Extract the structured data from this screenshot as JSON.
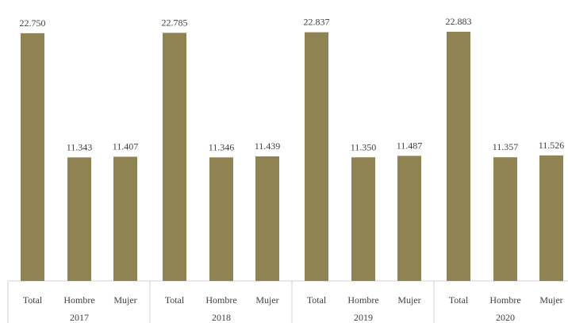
{
  "chart_data": {
    "type": "bar",
    "title": "",
    "xlabel": "",
    "ylabel": "",
    "ylim": [
      0,
      22883
    ],
    "bar_color": "#8f8353",
    "groups": [
      {
        "year": "2017",
        "categories": [
          "Total",
          "Hombre",
          "Mujer"
        ],
        "values": [
          22750,
          11343,
          11407
        ],
        "value_labels": [
          "22.750",
          "11.343",
          "11.407"
        ]
      },
      {
        "year": "2018",
        "categories": [
          "Total",
          "Hombre",
          "Mujer"
        ],
        "values": [
          22785,
          11346,
          11439
        ],
        "value_labels": [
          "22.785",
          "11.346",
          "11.439"
        ]
      },
      {
        "year": "2019",
        "categories": [
          "Total",
          "Hombre",
          "Mujer"
        ],
        "values": [
          22837,
          11350,
          11487
        ],
        "value_labels": [
          "22.837",
          "11.350",
          "11.487"
        ]
      },
      {
        "year": "2020",
        "categories": [
          "Total",
          "Hombre",
          "Mujer"
        ],
        "values": [
          22883,
          11357,
          11526
        ],
        "value_labels": [
          "22.883",
          "11.357",
          "11.526"
        ]
      }
    ],
    "grid": false,
    "legend": "none"
  }
}
